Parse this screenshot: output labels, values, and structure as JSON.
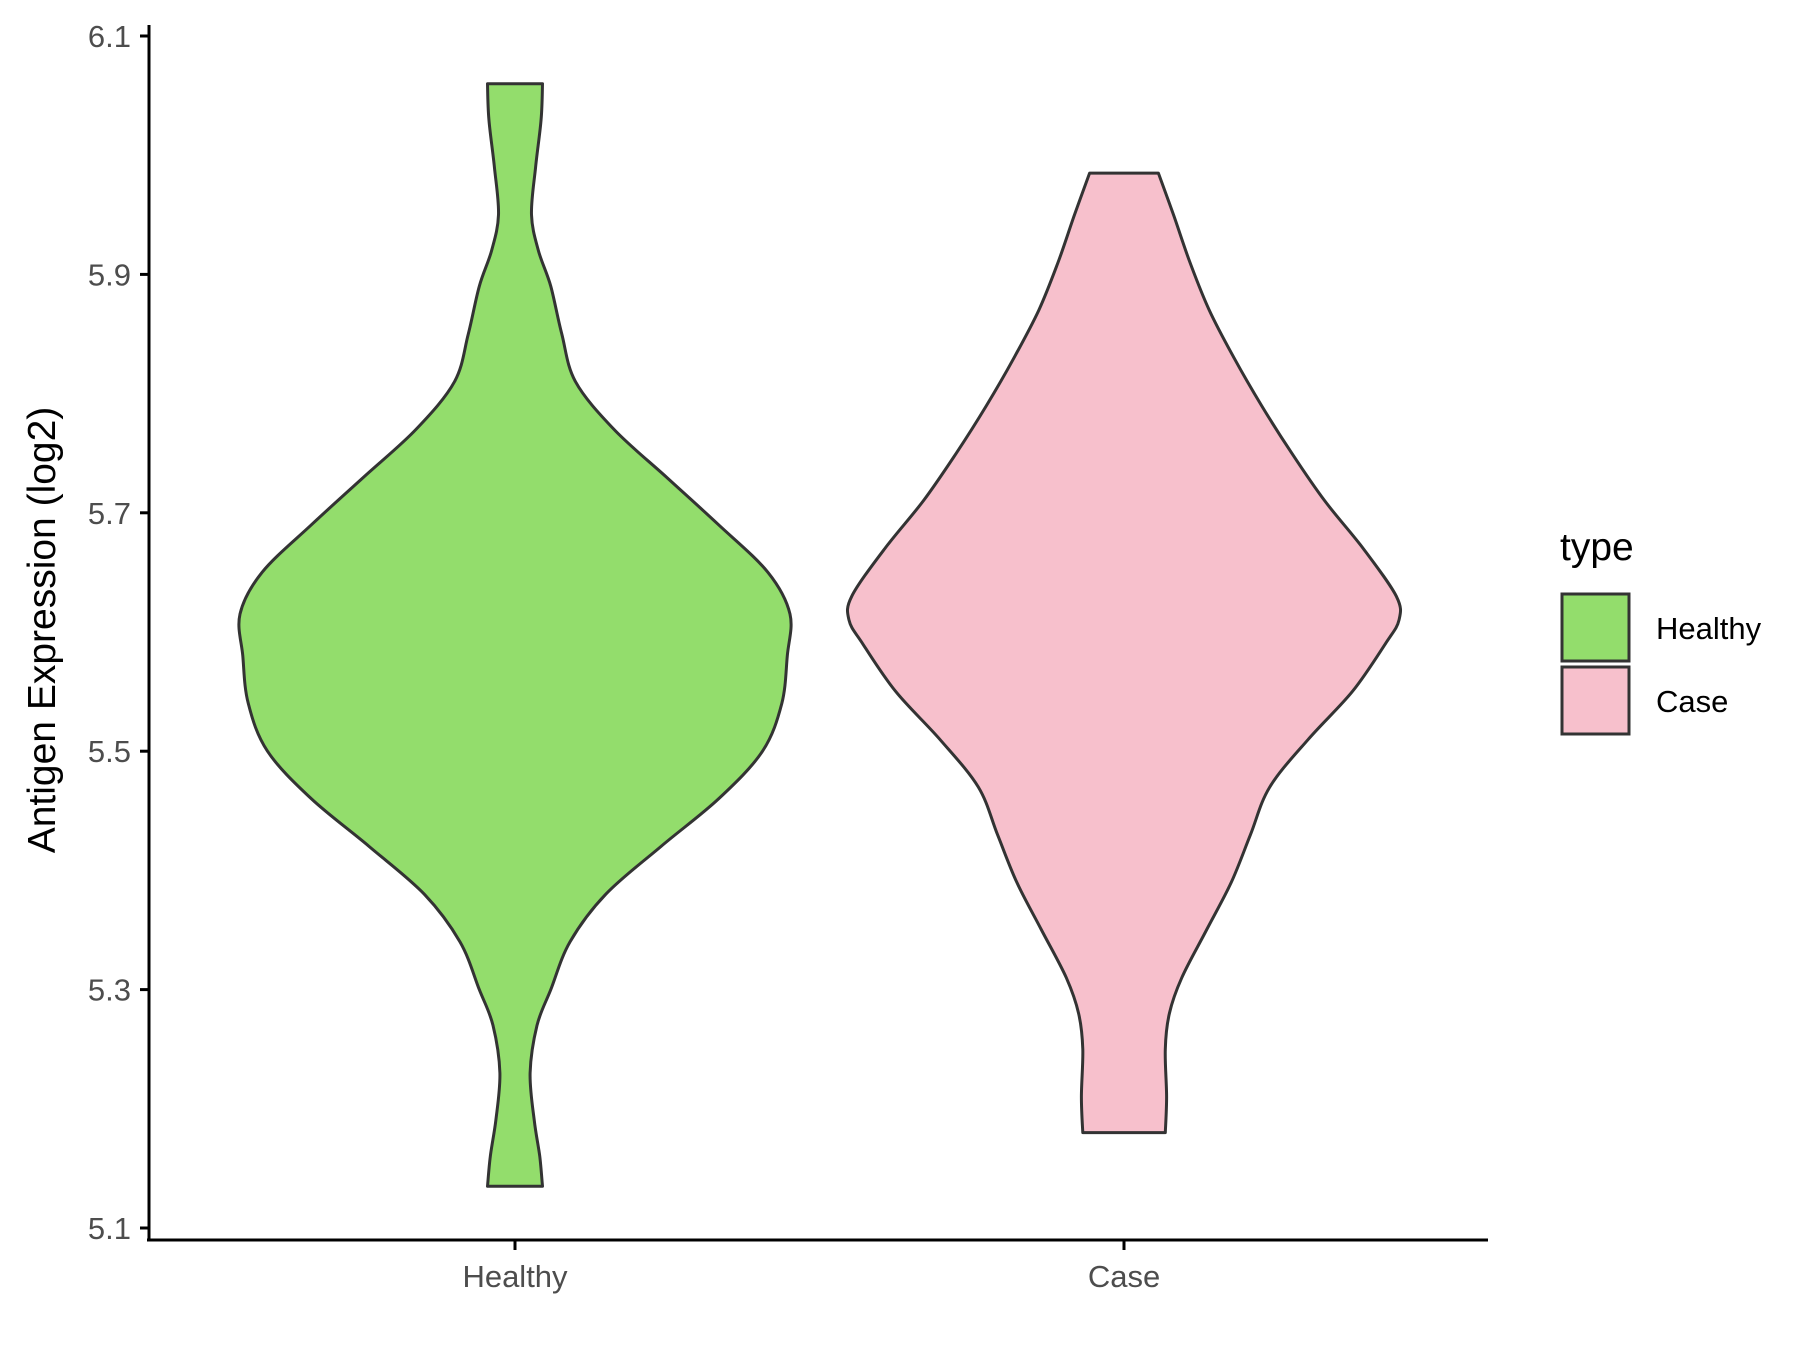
{
  "chart_data": {
    "type": "violin",
    "title": "",
    "xlabel": "",
    "ylabel": "Antigen Expression (log2)",
    "ylim": [
      5.1,
      6.1
    ],
    "yticks": [
      "5.1",
      "5.3",
      "5.5",
      "5.7",
      "5.9",
      "6.1"
    ],
    "categories": [
      "Healthy",
      "Case"
    ],
    "grid": false,
    "legend": {
      "title": "type",
      "position": "right",
      "entries": [
        "Healthy",
        "Case"
      ]
    },
    "colors": {
      "Healthy": "#93dd6c",
      "Case": "#f7c0cc",
      "outline": "#333333",
      "axis": "#000000"
    },
    "series": [
      {
        "name": "Healthy",
        "min": 5.135,
        "max": 6.06,
        "density_profile": [
          [
            5.135,
            0.1
          ],
          [
            5.16,
            0.09
          ],
          [
            5.19,
            0.07
          ],
          [
            5.23,
            0.055
          ],
          [
            5.27,
            0.08
          ],
          [
            5.3,
            0.13
          ],
          [
            5.34,
            0.2
          ],
          [
            5.38,
            0.33
          ],
          [
            5.42,
            0.53
          ],
          [
            5.46,
            0.74
          ],
          [
            5.5,
            0.9
          ],
          [
            5.54,
            0.97
          ],
          [
            5.58,
            0.99
          ],
          [
            5.615,
            1.0
          ],
          [
            5.65,
            0.92
          ],
          [
            5.69,
            0.74
          ],
          [
            5.73,
            0.55
          ],
          [
            5.77,
            0.36
          ],
          [
            5.81,
            0.22
          ],
          [
            5.85,
            0.17
          ],
          [
            5.89,
            0.13
          ],
          [
            5.92,
            0.085
          ],
          [
            5.95,
            0.06
          ],
          [
            5.99,
            0.075
          ],
          [
            6.03,
            0.095
          ],
          [
            6.06,
            0.1
          ]
        ]
      },
      {
        "name": "Case",
        "min": 5.18,
        "max": 5.985,
        "density_profile": [
          [
            5.18,
            0.15
          ],
          [
            5.21,
            0.155
          ],
          [
            5.25,
            0.15
          ],
          [
            5.28,
            0.165
          ],
          [
            5.31,
            0.21
          ],
          [
            5.35,
            0.3
          ],
          [
            5.39,
            0.39
          ],
          [
            5.43,
            0.46
          ],
          [
            5.47,
            0.53
          ],
          [
            5.51,
            0.67
          ],
          [
            5.55,
            0.83
          ],
          [
            5.59,
            0.95
          ],
          [
            5.61,
            1.0
          ],
          [
            5.63,
            0.99
          ],
          [
            5.67,
            0.87
          ],
          [
            5.71,
            0.73
          ],
          [
            5.75,
            0.61
          ],
          [
            5.79,
            0.5
          ],
          [
            5.83,
            0.4
          ],
          [
            5.87,
            0.31
          ],
          [
            5.91,
            0.24
          ],
          [
            5.95,
            0.18
          ],
          [
            5.985,
            0.125
          ]
        ]
      }
    ]
  }
}
